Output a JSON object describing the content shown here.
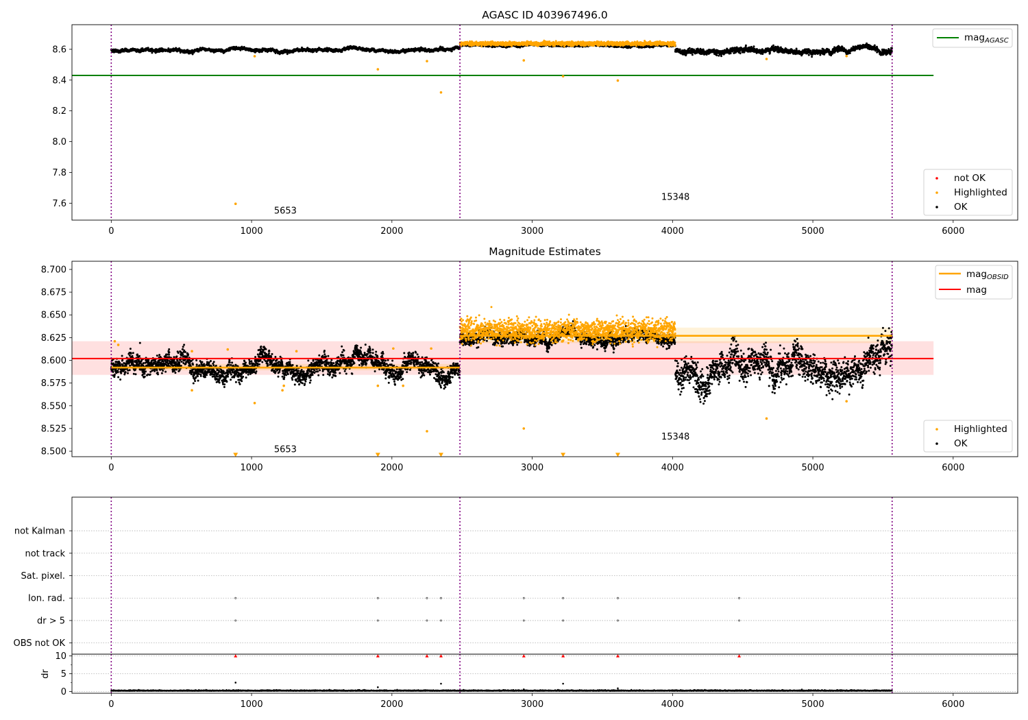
{
  "chart_data": [
    {
      "type": "scatter",
      "title": "AGASC ID 403967496.0",
      "xlim": [
        -280,
        6460
      ],
      "ylim": [
        7.49,
        8.76
      ],
      "xticks": [
        0,
        1000,
        2000,
        3000,
        4000,
        5000,
        6000
      ],
      "yticks": [
        7.6,
        7.8,
        8.0,
        8.2,
        8.4,
        8.6
      ],
      "ytick_labels": [
        "7.6",
        "7.8",
        "8.0",
        "8.2",
        "8.4",
        "8.6"
      ],
      "grid": false,
      "obs_boundaries": [
        0,
        2485,
        5565
      ],
      "lines": [
        {
          "name": "mag_AGASC",
          "color": "#008000",
          "x": [
            -280,
            5860
          ],
          "y": [
            8.43,
            8.43
          ]
        }
      ],
      "segments": [
        {
          "x0": 0,
          "x1": 2485,
          "black_mean": 8.594,
          "black_noise": 0.006,
          "orange": false
        },
        {
          "x0": 2485,
          "x1": 4020,
          "black_mean": 8.625,
          "black_noise": 0.004,
          "orange": true,
          "orange_mean": 8.637,
          "orange_noise": 0.006
        },
        {
          "x0": 4020,
          "x1": 5565,
          "black_mean": 8.593,
          "black_noise": 0.01,
          "orange": false
        }
      ],
      "outliers": [
        {
          "x": 886,
          "y": 7.596
        },
        {
          "x": 1022,
          "y": 8.555
        },
        {
          "x": 1900,
          "y": 8.47
        },
        {
          "x": 2250,
          "y": 8.523
        },
        {
          "x": 2350,
          "y": 8.32
        },
        {
          "x": 2940,
          "y": 8.528
        },
        {
          "x": 3220,
          "y": 8.425
        },
        {
          "x": 3610,
          "y": 8.397
        },
        {
          "x": 4670,
          "y": 8.537
        },
        {
          "x": 5240,
          "y": 8.556
        }
      ],
      "annotations": [
        {
          "text": "5653",
          "x": 1160,
          "y": 7.55
        },
        {
          "text": "15348",
          "x": 3920,
          "y": 7.64
        }
      ],
      "legend_lines": [
        {
          "label": "mag",
          "sub": "AGASC",
          "color": "#008000"
        }
      ],
      "legend_points": [
        {
          "label": "not OK",
          "color": "#ff0000"
        },
        {
          "label": "Highlighted",
          "color": "#ffa500"
        },
        {
          "label": "OK",
          "color": "#000000"
        }
      ]
    },
    {
      "type": "scatter",
      "title": "Magnitude Estimates",
      "xlim": [
        -280,
        6460
      ],
      "ylim": [
        8.494,
        8.709
      ],
      "xticks": [
        0,
        1000,
        2000,
        3000,
        4000,
        5000,
        6000
      ],
      "yticks": [
        8.5,
        8.525,
        8.55,
        8.575,
        8.6,
        8.625,
        8.65,
        8.675,
        8.7
      ],
      "ytick_labels": [
        "8.500",
        "8.525",
        "8.550",
        "8.575",
        "8.600",
        "8.625",
        "8.650",
        "8.675",
        "8.700"
      ],
      "grid": false,
      "obs_boundaries": [
        0,
        2485,
        5565
      ],
      "bands": [
        {
          "color": "#ff0000",
          "opacity": 0.12,
          "x0": -280,
          "x1": 5860,
          "y0": 8.584,
          "y1": 8.621
        },
        {
          "color": "#ffa500",
          "opacity": 0.15,
          "x0": 0,
          "x1": 2485,
          "y0": 8.589,
          "y1": 8.596
        },
        {
          "color": "#ffa500",
          "opacity": 0.15,
          "x0": 2485,
          "x1": 5565,
          "y0": 8.619,
          "y1": 8.636
        }
      ],
      "lines": [
        {
          "name": "mag",
          "color": "#ff0000",
          "x": [
            -280,
            5860
          ],
          "y": [
            8.602,
            8.602
          ]
        },
        {
          "name": "mag_OBSID",
          "color": "#ffa500",
          "x": [
            0,
            2485
          ],
          "y": [
            8.592,
            8.592
          ]
        },
        {
          "name": "mag_OBSID",
          "color": "#ffa500",
          "x": [
            2485,
            5565
          ],
          "y": [
            8.627,
            8.627
          ]
        }
      ],
      "segments": [
        {
          "x0": 0,
          "x1": 2485,
          "black_mean": 8.592,
          "black_noise": 0.006,
          "orange": false
        },
        {
          "x0": 2485,
          "x1": 4020,
          "black_mean": 8.623,
          "black_noise": 0.004,
          "orange": true,
          "orange_mean": 8.633,
          "orange_noise": 0.006
        },
        {
          "x0": 4020,
          "x1": 5565,
          "black_mean": 8.592,
          "black_noise": 0.01,
          "orange": false
        }
      ],
      "outliers": [
        {
          "x": 25,
          "y": 8.621
        },
        {
          "x": 50,
          "y": 8.617
        },
        {
          "x": 575,
          "y": 8.567
        },
        {
          "x": 575,
          "y": 8.61
        },
        {
          "x": 830,
          "y": 8.612
        },
        {
          "x": 1022,
          "y": 8.553
        },
        {
          "x": 1220,
          "y": 8.567
        },
        {
          "x": 1230,
          "y": 8.572
        },
        {
          "x": 1320,
          "y": 8.61
        },
        {
          "x": 1900,
          "y": 8.572
        },
        {
          "x": 2010,
          "y": 8.613
        },
        {
          "x": 2080,
          "y": 8.572
        },
        {
          "x": 2250,
          "y": 8.522
        },
        {
          "x": 2280,
          "y": 8.613
        },
        {
          "x": 2940,
          "y": 8.525
        },
        {
          "x": 4670,
          "y": 8.536
        },
        {
          "x": 5240,
          "y": 8.555
        }
      ],
      "clipped": [
        {
          "x": 886,
          "y": 8.496
        },
        {
          "x": 1900,
          "y": 8.496
        },
        {
          "x": 2350,
          "y": 8.496
        },
        {
          "x": 3220,
          "y": 8.496
        },
        {
          "x": 3610,
          "y": 8.496
        }
      ],
      "annotations": [
        {
          "text": "5653",
          "x": 1160,
          "y": 8.502
        },
        {
          "text": "15348",
          "x": 3920,
          "y": 8.516
        }
      ],
      "legend_lines": [
        {
          "label": "mag",
          "sub": "OBSID",
          "color": "#ffa500"
        },
        {
          "label": "mag",
          "sub": "",
          "color": "#ff0000"
        }
      ],
      "legend_points": [
        {
          "label": "Highlighted",
          "color": "#ffa500"
        },
        {
          "label": "OK",
          "color": "#000000"
        }
      ]
    },
    {
      "type": "scatter",
      "xlim": [
        -280,
        6460
      ],
      "ylim": [
        -0.5,
        6.5
      ],
      "categories": [
        "not Kalman",
        "not track",
        "Sat. pixel.",
        "Ion. rad.",
        "dr > 5",
        "OBS not OK"
      ],
      "category_values": [
        5,
        4,
        3,
        2,
        1,
        0
      ],
      "grid": true,
      "obs_boundaries": [
        0,
        2485,
        5565
      ],
      "flag_points": [
        {
          "category": "Ion. rad.",
          "x": [
            886,
            1900,
            2250,
            2350,
            2940,
            3220,
            3610,
            4475
          ]
        },
        {
          "category": "dr > 5",
          "x": [
            886,
            1900,
            2250,
            2350,
            2940,
            3220,
            3610,
            4475
          ]
        }
      ]
    },
    {
      "type": "scatter",
      "ylabel": "dr",
      "xlim": [
        -280,
        6460
      ],
      "ylim": [
        -0.5,
        10.5
      ],
      "xticks": [
        0,
        1000,
        2000,
        3000,
        4000,
        5000,
        6000
      ],
      "yticks": [
        0,
        5,
        10
      ],
      "ytick_labels": [
        "0",
        "5",
        "10"
      ],
      "grid": true,
      "obs_boundaries": [
        0,
        2485,
        5565
      ],
      "baseline": {
        "x0": 0,
        "x1": 5565,
        "mean": 0.15,
        "noise": 0.1
      },
      "points": [
        {
          "x": 886,
          "y": 2.5
        },
        {
          "x": 1900,
          "y": 1.2
        },
        {
          "x": 2350,
          "y": 2.2
        },
        {
          "x": 3220,
          "y": 2.2
        },
        {
          "x": 2940,
          "y": 0.6
        },
        {
          "x": 3610,
          "y": 0.9
        }
      ],
      "clipped_high": [
        {
          "x": 886,
          "y": 10
        },
        {
          "x": 1900,
          "y": 10
        },
        {
          "x": 2250,
          "y": 10
        },
        {
          "x": 2350,
          "y": 10
        },
        {
          "x": 2940,
          "y": 10
        },
        {
          "x": 3220,
          "y": 10
        },
        {
          "x": 3610,
          "y": 10
        },
        {
          "x": 4475,
          "y": 10
        }
      ]
    }
  ]
}
